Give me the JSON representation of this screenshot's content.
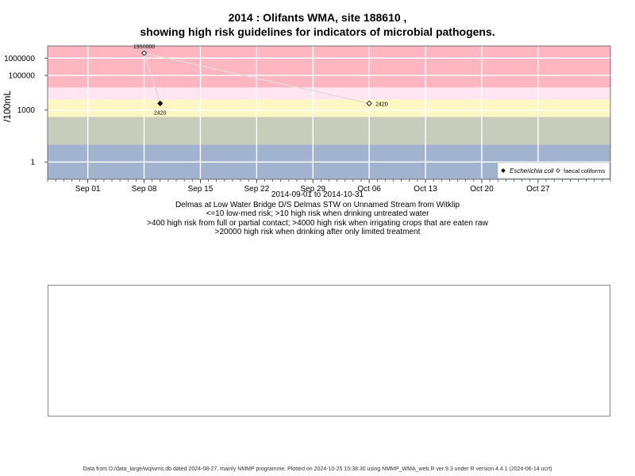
{
  "chart_data": {
    "type": "scatter",
    "title": [
      "2014 : Olifants WMA, site 188610 ,",
      "showing high risk guidelines for indicators of microbial pathogens."
    ],
    "ylabel": "/100mL",
    "y_scale": "log",
    "y_ticks": [
      {
        "value": 1,
        "label": "1"
      },
      {
        "value": 1000,
        "label": "1000"
      },
      {
        "value": 100000,
        "label": "100000"
      },
      {
        "value": 1000000,
        "label": "1000000"
      }
    ],
    "x_range": [
      "2014-08-27",
      "2014-11-05"
    ],
    "x_ticks": [
      {
        "date": "2014-09-01",
        "label": "Sep 01"
      },
      {
        "date": "2014-09-08",
        "label": "Sep 08"
      },
      {
        "date": "2014-09-15",
        "label": "Sep 15"
      },
      {
        "date": "2014-09-22",
        "label": "Sep 22"
      },
      {
        "date": "2014-09-29",
        "label": "Sep 29"
      },
      {
        "date": "2014-10-06",
        "label": "Oct 06"
      },
      {
        "date": "2014-10-13",
        "label": "Oct 13"
      },
      {
        "date": "2014-10-20",
        "label": "Oct 20"
      },
      {
        "date": "2014-10-27",
        "label": "Oct 27"
      }
    ],
    "ylim": [
      0.1,
      5000000
    ],
    "bands": [
      {
        "from": 20000,
        "to": 5000000,
        "color": "#ffb6c1"
      },
      {
        "from": 4000,
        "to": 20000,
        "color": "#ffe4f1"
      },
      {
        "from": 400,
        "to": 4000,
        "color": "#fdf7c4"
      },
      {
        "from": 10,
        "to": 400,
        "color": "#c8ccbb"
      },
      {
        "from": 0.1,
        "to": 10,
        "color": "#a1b3cf"
      }
    ],
    "series": [
      {
        "name": "Escherichia coli",
        "marker": "filled-diamond",
        "color": "#111111",
        "points": [
          {
            "x": "2014-09-10",
            "y": 2420,
            "label": "2420"
          }
        ]
      },
      {
        "name": "faecal coliforms",
        "marker": "open-diamond",
        "color": "#111111",
        "points": [
          {
            "x": "2014-09-08",
            "y": 1950000,
            "label": "1950000"
          },
          {
            "x": "2014-10-06",
            "y": 2420,
            "label": "2420"
          }
        ]
      }
    ],
    "legend_position": "bottom-right",
    "grid": true,
    "xlabel_lines": [
      "2014-09-01 to 2014-10-31",
      "Delmas at Low Water Bridge D/S Delmas STW on Unnamed Stream from Witklip",
      "<=10 low-med risk; >10 high risk when drinking untreated water",
      ">400 high risk from full or partial contact; >4000 high risk when irrigating crops that are eaten raw",
      ">20000 high risk when drinking after only limited treatment"
    ]
  },
  "footer": "Data from D:/data_large/wq/wms.db dated 2024-08-27, mainly NMMP programme. Plotted on 2024-10-25 15:38:30 using NMMP_WMA_web.R ver 9.3 under R version 4.4.1 (2024-06-14 ucrt)"
}
